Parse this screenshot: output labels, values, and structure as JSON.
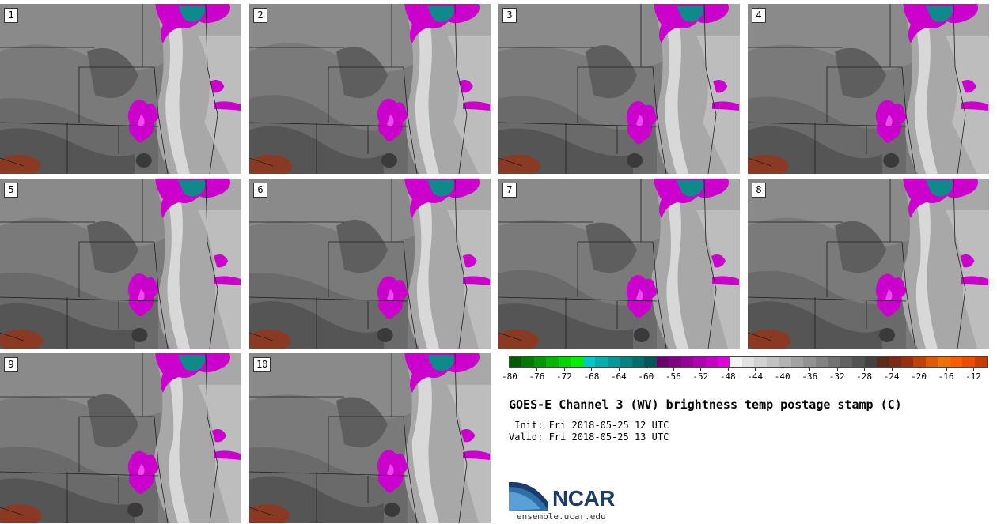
{
  "panels": [
    {
      "label": "1"
    },
    {
      "label": "2"
    },
    {
      "label": "3"
    },
    {
      "label": "4"
    },
    {
      "label": "5"
    },
    {
      "label": "6"
    },
    {
      "label": "7"
    },
    {
      "label": "8"
    },
    {
      "label": "9"
    },
    {
      "label": "10"
    }
  ],
  "colorbar": {
    "tick_labels": [
      "-80",
      "-76",
      "-72",
      "-68",
      "-64",
      "-60",
      "-56",
      "-52",
      "-48",
      "-44",
      "-40",
      "-36",
      "-32",
      "-28",
      "-24",
      "-20",
      "-16",
      "-12"
    ],
    "colors": [
      "#005a00",
      "#007a00",
      "#009a00",
      "#00b800",
      "#00d600",
      "#00f000",
      "#00c8c8",
      "#00b0b0",
      "#009a9a",
      "#008484",
      "#006e6e",
      "#005858",
      "#6a006a",
      "#800080",
      "#990099",
      "#b000b0",
      "#c800c8",
      "#e000e0",
      "#f2f2f2",
      "#e2e2e2",
      "#d2d2d2",
      "#c2c2c2",
      "#b2b2b2",
      "#a2a2a2",
      "#929292",
      "#828282",
      "#727272",
      "#626262",
      "#525252",
      "#424242",
      "#5a2a1a",
      "#7a2a12",
      "#9a2f0c",
      "#c0400a",
      "#e05a05",
      "#f07008",
      "#ff5a00",
      "#f04a00",
      "#d03a00"
    ]
  },
  "title": "GOES-E Channel 3 (WV) brightness temp postage stamp (C)",
  "init_line": " Init: Fri 2018-05-25 12 UTC",
  "valid_line": "Valid: Fri 2018-05-25 13 UTC",
  "logo": {
    "text": "NCAR",
    "site": "ensemble.ucar.edu",
    "color": "#1b3d6d"
  }
}
